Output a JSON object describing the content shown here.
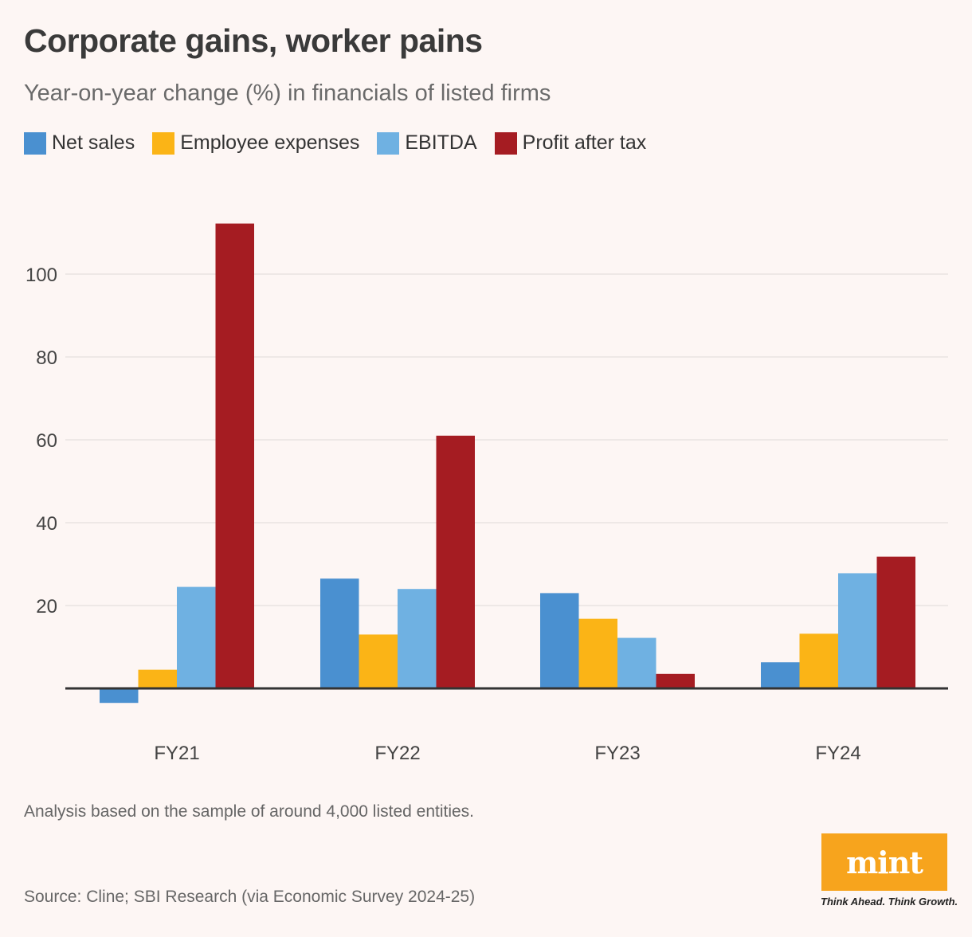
{
  "title": "Corporate gains, worker pains",
  "subtitle": "Year-on-year change (%) in financials of listed firms",
  "legend": [
    {
      "label": "Net sales",
      "color": "#4a90d0"
    },
    {
      "label": "Employee expenses",
      "color": "#fbb416"
    },
    {
      "label": "EBITDA",
      "color": "#6fb1e2"
    },
    {
      "label": "Profit after tax",
      "color": "#a51c22"
    }
  ],
  "footnote": "Analysis based on the sample of around 4,000 listed entities.",
  "source": "Source: Cline; SBI Research (via Economic Survey 2024-25)",
  "logo": {
    "text": "mint",
    "tagline": "Think Ahead. Think Growth."
  },
  "chart_data": {
    "type": "bar",
    "title": "Corporate gains, worker pains",
    "xlabel": "",
    "ylabel": "Year-on-year change (%)",
    "categories": [
      "FY21",
      "FY22",
      "FY23",
      "FY24"
    ],
    "ylim": [
      -5,
      120
    ],
    "yticks": [
      20,
      40,
      60,
      80,
      100
    ],
    "grid": true,
    "series": [
      {
        "name": "Net sales",
        "color": "#4a90d0",
        "values": [
          -3.5,
          26.5,
          23,
          6.3
        ]
      },
      {
        "name": "Employee expenses",
        "color": "#fbb416",
        "values": [
          4.5,
          13,
          16.8,
          13.2
        ]
      },
      {
        "name": "EBITDA",
        "color": "#6fb1e2",
        "values": [
          24.5,
          24,
          12.2,
          27.8
        ]
      },
      {
        "name": "Profit after tax",
        "color": "#a51c22",
        "values": [
          112.2,
          61,
          3.5,
          31.8
        ]
      }
    ]
  }
}
